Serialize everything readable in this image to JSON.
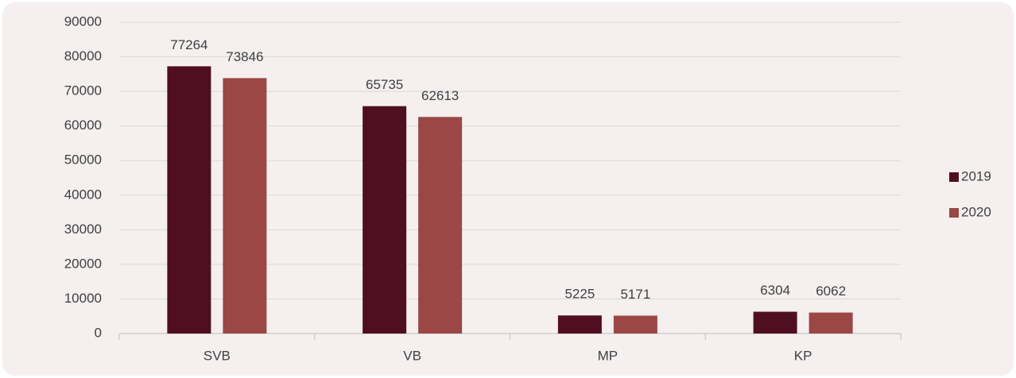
{
  "chart_data": {
    "type": "bar",
    "categories": [
      "SVB",
      "VB",
      "MP",
      "KP"
    ],
    "series": [
      {
        "name": "2019",
        "color": "#4f0f20",
        "values": [
          77264,
          65735,
          5225,
          6304
        ]
      },
      {
        "name": "2020",
        "color": "#9b4745",
        "values": [
          73846,
          62613,
          5171,
          6062
        ]
      }
    ],
    "ylim": [
      0,
      90000
    ],
    "yticks": [
      0,
      10000,
      20000,
      30000,
      40000,
      50000,
      60000,
      70000,
      80000,
      90000
    ],
    "grid": true,
    "legend": "right"
  }
}
